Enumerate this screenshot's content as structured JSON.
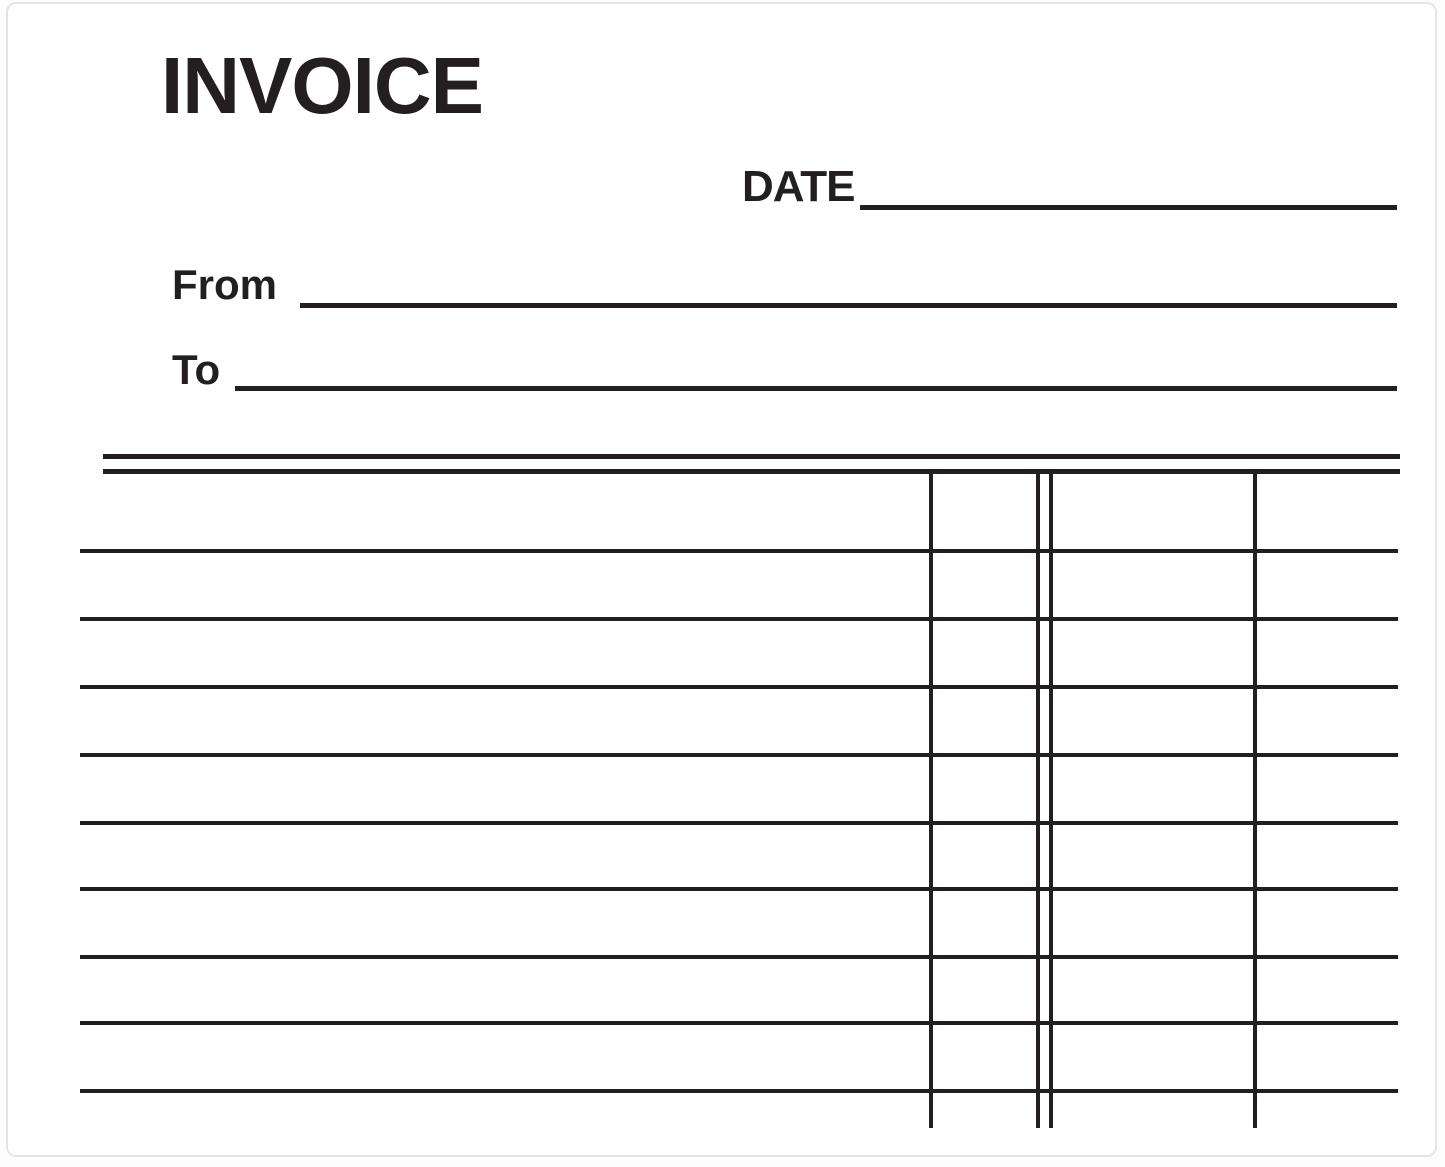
{
  "document": {
    "title": "INVOICE",
    "fields": {
      "date": {
        "label": "DATE",
        "value": ""
      },
      "from": {
        "label": "From",
        "value": ""
      },
      "to": {
        "label": "To",
        "value": ""
      }
    },
    "table": {
      "header_text": "",
      "row_count": 9,
      "column_divider_count": 4,
      "has_double_top_rule": true,
      "cells": []
    }
  },
  "colors": {
    "ink": "#231f20",
    "paper": "#ffffff",
    "paper_edge": "#e5e5e5"
  }
}
